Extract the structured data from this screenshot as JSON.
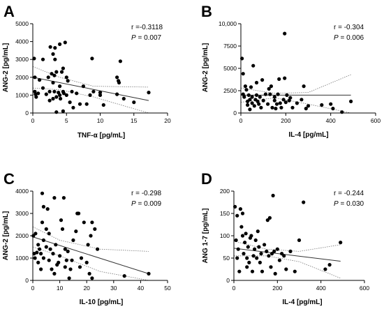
{
  "chart_data": [
    {
      "type": "scatter",
      "panel": "A",
      "xlabel": "TNF-α [pg/mL]",
      "ylabel": "ANG-2 [pg/mL]",
      "xlim": [
        0,
        20
      ],
      "ylim": [
        0,
        5000
      ],
      "xticks": [
        "0",
        "5",
        "10",
        "15",
        "20"
      ],
      "yticks": [
        "0",
        "1000",
        "2000",
        "3000",
        "4000",
        "5000"
      ],
      "stat_r": "r =-0.3118",
      "stat_p_symbol": "P",
      "stat_p_value": " = 0.007",
      "fit_line": [
        [
          0,
          2000
        ],
        [
          17.2,
          700
        ]
      ],
      "ci_upper": [
        [
          0,
          2600
        ],
        [
          4,
          2000
        ],
        [
          9,
          1500
        ],
        [
          17.2,
          1450
        ]
      ],
      "ci_lower": [
        [
          0,
          1400
        ],
        [
          4,
          1300
        ],
        [
          9,
          900
        ],
        [
          17.2,
          0
        ]
      ],
      "points": [
        [
          0.2,
          3050
        ],
        [
          0.3,
          2000
        ],
        [
          0.3,
          1200
        ],
        [
          0.4,
          1050
        ],
        [
          0.5,
          900
        ],
        [
          0.8,
          1100
        ],
        [
          1.0,
          1850
        ],
        [
          1.5,
          1400
        ],
        [
          1.5,
          3000
        ],
        [
          2.0,
          1050
        ],
        [
          2.3,
          2000
        ],
        [
          2.5,
          700
        ],
        [
          2.5,
          1200
        ],
        [
          2.6,
          3700
        ],
        [
          2.8,
          2200
        ],
        [
          3.0,
          3300
        ],
        [
          3.0,
          800
        ],
        [
          3.0,
          1700
        ],
        [
          3.2,
          2100
        ],
        [
          3.2,
          1200
        ],
        [
          3.3,
          3000
        ],
        [
          3.3,
          3650
        ],
        [
          3.5,
          900
        ],
        [
          3.5,
          50
        ],
        [
          3.5,
          2300
        ],
        [
          3.8,
          1150
        ],
        [
          4.0,
          1000
        ],
        [
          4.0,
          3850
        ],
        [
          4.0,
          1500
        ],
        [
          4.1,
          800
        ],
        [
          4.3,
          2300
        ],
        [
          4.5,
          2500
        ],
        [
          4.5,
          1200
        ],
        [
          4.5,
          100
        ],
        [
          4.6,
          1100
        ],
        [
          4.8,
          3950
        ],
        [
          5.0,
          2000
        ],
        [
          5.0,
          1000
        ],
        [
          5.2,
          1800
        ],
        [
          5.5,
          600
        ],
        [
          5.8,
          1200
        ],
        [
          6.0,
          300
        ],
        [
          6.5,
          1100
        ],
        [
          7.0,
          500
        ],
        [
          7.5,
          1500
        ],
        [
          8.0,
          500
        ],
        [
          8.5,
          1000
        ],
        [
          8.8,
          3050
        ],
        [
          9.0,
          1200
        ],
        [
          10.0,
          1150
        ],
        [
          10.0,
          1000
        ],
        [
          10.5,
          450
        ],
        [
          12.5,
          1050
        ],
        [
          12.5,
          2000
        ],
        [
          12.7,
          1800
        ],
        [
          12.8,
          1700
        ],
        [
          13.0,
          2900
        ],
        [
          13.5,
          800
        ],
        [
          15.0,
          600
        ],
        [
          17.2,
          1150
        ]
      ]
    },
    {
      "type": "scatter",
      "panel": "B",
      "xlabel": "IL-4 [pg/mL]",
      "ylabel": "ANG-2 [pg/mL]",
      "xlim": [
        0,
        600
      ],
      "ylim": [
        0,
        10000
      ],
      "xticks": [
        "0",
        "200",
        "400",
        "600"
      ],
      "yticks": [
        "0",
        "2500",
        "5000",
        "7500",
        "10,000"
      ],
      "stat_r": "r = -0.304",
      "stat_p_symbol": "P",
      "stat_p_value": " = 0.006",
      "fit_line": [
        [
          0,
          2000
        ],
        [
          490,
          2000
        ]
      ],
      "ci_upper": [
        [
          0,
          2800
        ],
        [
          150,
          2200
        ],
        [
          300,
          2300
        ],
        [
          490,
          4300
        ]
      ],
      "ci_lower": [
        [
          0,
          1200
        ],
        [
          150,
          1700
        ],
        [
          300,
          1000
        ],
        [
          490,
          0
        ]
      ],
      "points": [
        [
          5,
          6100
        ],
        [
          10,
          2100
        ],
        [
          10,
          4400
        ],
        [
          15,
          1800
        ],
        [
          20,
          3000
        ],
        [
          25,
          2600
        ],
        [
          30,
          900
        ],
        [
          30,
          1300
        ],
        [
          35,
          2000
        ],
        [
          40,
          1500
        ],
        [
          40,
          400
        ],
        [
          45,
          2900
        ],
        [
          50,
          1800
        ],
        [
          50,
          1100
        ],
        [
          55,
          5300
        ],
        [
          60,
          800
        ],
        [
          65,
          1500
        ],
        [
          70,
          3400
        ],
        [
          70,
          2000
        ],
        [
          75,
          1300
        ],
        [
          80,
          1000
        ],
        [
          85,
          1800
        ],
        [
          90,
          600
        ],
        [
          95,
          3700
        ],
        [
          100,
          1400
        ],
        [
          110,
          2100
        ],
        [
          120,
          1000
        ],
        [
          125,
          2700
        ],
        [
          130,
          2100
        ],
        [
          135,
          3000
        ],
        [
          140,
          600
        ],
        [
          150,
          1800
        ],
        [
          150,
          1400
        ],
        [
          155,
          500
        ],
        [
          160,
          1000
        ],
        [
          165,
          2100
        ],
        [
          170,
          3800
        ],
        [
          175,
          1100
        ],
        [
          180,
          600
        ],
        [
          190,
          1500
        ],
        [
          195,
          3900
        ],
        [
          195,
          8900
        ],
        [
          200,
          1200
        ],
        [
          205,
          2000
        ],
        [
          215,
          1400
        ],
        [
          220,
          1700
        ],
        [
          230,
          600
        ],
        [
          250,
          1100
        ],
        [
          270,
          1500
        ],
        [
          280,
          3000
        ],
        [
          290,
          500
        ],
        [
          300,
          800
        ],
        [
          360,
          900
        ],
        [
          400,
          1000
        ],
        [
          410,
          500
        ],
        [
          450,
          100
        ],
        [
          490,
          1300
        ]
      ]
    },
    {
      "type": "scatter",
      "panel": "C",
      "xlabel": "IL-10 [pg/mL]",
      "ylabel": "ANG-2 [pg/mL]",
      "xlim": [
        0,
        50
      ],
      "ylim": [
        0,
        4000
      ],
      "xticks": [
        "0",
        "10",
        "20",
        "30",
        "40",
        "50"
      ],
      "yticks": [
        "0",
        "1000",
        "2000",
        "3000",
        "4000"
      ],
      "stat_r": "r = -0.298",
      "stat_p_symbol": "P",
      "stat_p_value": " = 0.009",
      "fit_line": [
        [
          0,
          1950
        ],
        [
          43,
          300
        ]
      ],
      "ci_upper": [
        [
          0,
          2400
        ],
        [
          10,
          1800
        ],
        [
          25,
          1400
        ],
        [
          43,
          1300
        ]
      ],
      "ci_lower": [
        [
          0,
          1500
        ],
        [
          10,
          1100
        ],
        [
          25,
          400
        ],
        [
          43,
          0
        ]
      ],
      "points": [
        [
          0.2,
          2000
        ],
        [
          0.5,
          1200
        ],
        [
          0.8,
          1000
        ],
        [
          1.0,
          2100
        ],
        [
          1.5,
          1250
        ],
        [
          2.0,
          1600
        ],
        [
          2.0,
          800
        ],
        [
          2.5,
          1400
        ],
        [
          3.0,
          1200
        ],
        [
          3.0,
          500
        ],
        [
          3.5,
          3900
        ],
        [
          3.5,
          2600
        ],
        [
          4.0,
          3300
        ],
        [
          4.0,
          1800
        ],
        [
          4.0,
          1000
        ],
        [
          5.0,
          2300
        ],
        [
          5.0,
          1500
        ],
        [
          5.5,
          3200
        ],
        [
          6.0,
          2100
        ],
        [
          6.0,
          900
        ],
        [
          6.5,
          1400
        ],
        [
          7.0,
          500
        ],
        [
          7.5,
          1200
        ],
        [
          8.0,
          3700
        ],
        [
          8.0,
          300
        ],
        [
          8.5,
          1600
        ],
        [
          9.0,
          700
        ],
        [
          9.5,
          800
        ],
        [
          10.0,
          1100
        ],
        [
          10.5,
          2700
        ],
        [
          11.0,
          2300
        ],
        [
          11.5,
          3700
        ],
        [
          12.0,
          600
        ],
        [
          12.0,
          1400
        ],
        [
          12.5,
          900
        ],
        [
          13.0,
          1300
        ],
        [
          13.5,
          100
        ],
        [
          14.0,
          500
        ],
        [
          14.5,
          900
        ],
        [
          15.0,
          1800
        ],
        [
          16.0,
          2200
        ],
        [
          16.5,
          3000
        ],
        [
          17.0,
          3000
        ],
        [
          17.5,
          600
        ],
        [
          18.0,
          1000
        ],
        [
          19.0,
          2600
        ],
        [
          20.0,
          800
        ],
        [
          20.5,
          1600
        ],
        [
          21.0,
          300
        ],
        [
          21.5,
          2000
        ],
        [
          22.0,
          2600
        ],
        [
          22.0,
          100
        ],
        [
          23.0,
          2300
        ],
        [
          24.0,
          1400
        ],
        [
          34.0,
          200
        ],
        [
          43.0,
          300
        ]
      ]
    },
    {
      "type": "scatter",
      "panel": "D",
      "xlabel": "IL-4 [pg/mL]",
      "ylabel": "ANG 1-7 [pg/mL]",
      "xlim": [
        0,
        600
      ],
      "ylim": [
        0,
        200
      ],
      "xticks": [
        "0",
        "200",
        "400",
        "600"
      ],
      "yticks": [
        "0",
        "50",
        "100",
        "150",
        "200"
      ],
      "stat_r": "r = -0.244",
      "stat_p_symbol": "P",
      "stat_p_value": " = 0.030",
      "fit_line": [
        [
          0,
          72
        ],
        [
          490,
          43
        ]
      ],
      "ci_upper": [
        [
          0,
          88
        ],
        [
          150,
          70
        ],
        [
          300,
          65
        ],
        [
          490,
          80
        ]
      ],
      "ci_lower": [
        [
          0,
          55
        ],
        [
          150,
          55
        ],
        [
          300,
          42
        ],
        [
          490,
          5
        ]
      ],
      "points": [
        [
          5,
          165
        ],
        [
          10,
          90
        ],
        [
          15,
          50
        ],
        [
          15,
          145
        ],
        [
          20,
          70
        ],
        [
          25,
          20
        ],
        [
          30,
          160
        ],
        [
          35,
          120
        ],
        [
          40,
          100
        ],
        [
          40,
          150
        ],
        [
          45,
          60
        ],
        [
          50,
          85
        ],
        [
          55,
          105
        ],
        [
          60,
          30
        ],
        [
          60,
          50
        ],
        [
          65,
          75
        ],
        [
          70,
          40
        ],
        [
          75,
          95
        ],
        [
          80,
          100
        ],
        [
          85,
          20
        ],
        [
          90,
          55
        ],
        [
          95,
          70
        ],
        [
          100,
          90
        ],
        [
          105,
          50
        ],
        [
          110,
          110
        ],
        [
          115,
          75
        ],
        [
          120,
          40
        ],
        [
          125,
          60
        ],
        [
          130,
          20
        ],
        [
          140,
          80
        ],
        [
          150,
          65
        ],
        [
          155,
          135
        ],
        [
          160,
          55
        ],
        [
          165,
          140
        ],
        [
          170,
          30
        ],
        [
          175,
          60
        ],
        [
          180,
          190
        ],
        [
          185,
          65
        ],
        [
          190,
          15
        ],
        [
          200,
          70
        ],
        [
          210,
          45
        ],
        [
          220,
          60
        ],
        [
          230,
          55
        ],
        [
          240,
          25
        ],
        [
          260,
          65
        ],
        [
          280,
          20
        ],
        [
          300,
          90
        ],
        [
          320,
          175
        ],
        [
          420,
          25
        ],
        [
          440,
          35
        ],
        [
          490,
          85
        ]
      ]
    }
  ]
}
